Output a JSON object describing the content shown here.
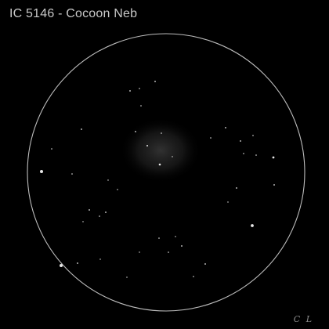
{
  "title": "IC 5146 - Cocoon Neb",
  "signature": "C L",
  "colors": {
    "background": "#000000",
    "field_circle": "#bdbdbd",
    "stars": "#e6e6e6",
    "nebula": "#2a2a2a",
    "text": "#c8c8c8"
  },
  "scene": {
    "subject": "astronomical-sketch",
    "nebula_shape": "diffuse-glow"
  }
}
